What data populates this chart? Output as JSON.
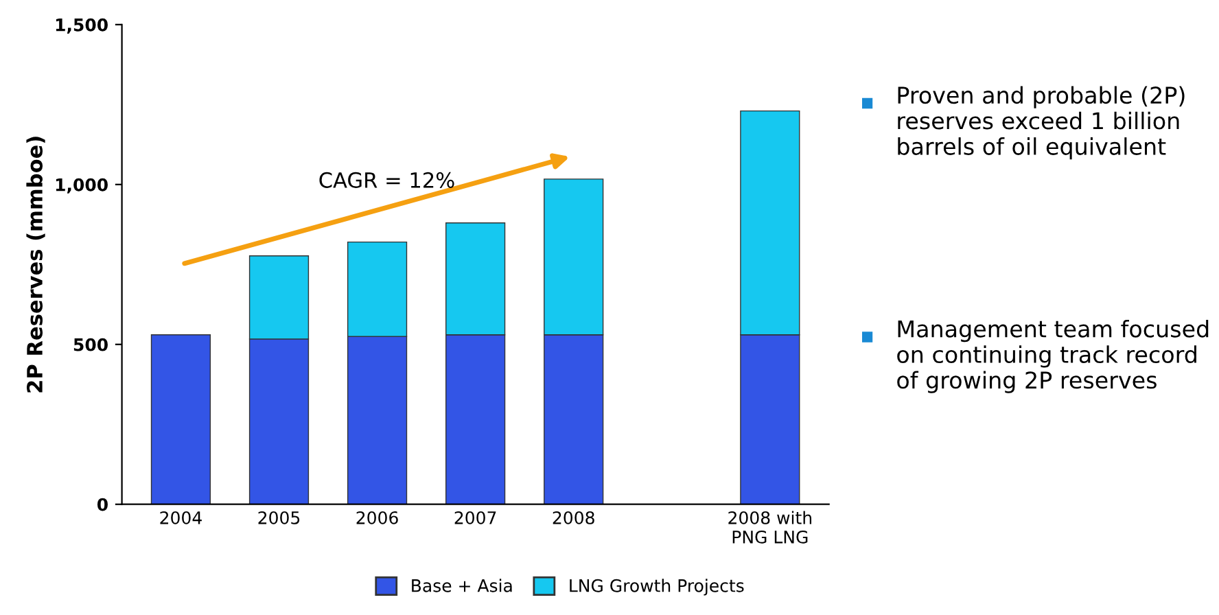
{
  "chart_data": {
    "type": "bar",
    "stacked": true,
    "ylabel": "2P Reserves (mmboe)",
    "categories": [
      "2004",
      "2005",
      "2006",
      "2007",
      "2008",
      null,
      "2008 with\nPNG LNG"
    ],
    "series": [
      {
        "name": "Base + Asia",
        "color": "#3355e6",
        "values": [
          530,
          517,
          525,
          530,
          530,
          null,
          530
        ]
      },
      {
        "name": "LNG Growth Projects",
        "color": "#16c8f0",
        "values": [
          null,
          260,
          295,
          350,
          487,
          null,
          700
        ]
      }
    ],
    "ylim": [
      0,
      1500
    ],
    "yticks": [
      0,
      500,
      {
        "value": 1000,
        "label": "1,000"
      },
      {
        "value": 1500,
        "label": "1,500"
      }
    ],
    "grid": false,
    "legend": "bottom",
    "annotations": [
      "CAGR = 12%",
      "Proven and probable (2P) reserves exceed 1 billion barrels of oil equivalent",
      "Management team focused on continuing track record of growing 2P reserves"
    ]
  }
}
